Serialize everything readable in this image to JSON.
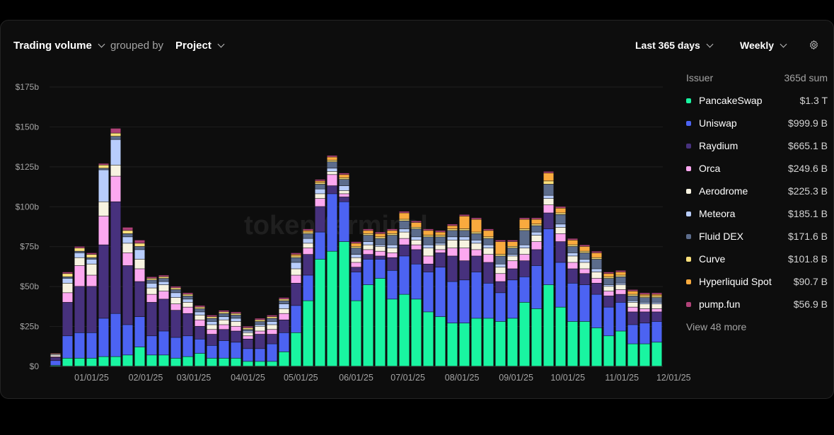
{
  "header": {
    "metric_label": "Trading volume",
    "grouped_by_label": "grouped by",
    "group_label": "Project",
    "range_label": "Last 365 days",
    "interval_label": "Weekly"
  },
  "watermark": "token terminal",
  "legend": {
    "heading_left": "Issuer",
    "heading_right": "365d sum",
    "items": [
      {
        "name": "PancakeSwap",
        "value": "$1.3 T",
        "color": "#19f5a1"
      },
      {
        "name": "Uniswap",
        "value": "$999.9 B",
        "color": "#4c63f2"
      },
      {
        "name": "Raydium",
        "value": "$665.1 B",
        "color": "#47317d"
      },
      {
        "name": "Orca",
        "value": "$249.6 B",
        "color": "#fca8f0"
      },
      {
        "name": "Aerodrome",
        "value": "$225.3 B",
        "color": "#f7f3e1"
      },
      {
        "name": "Meteora",
        "value": "$185.1 B",
        "color": "#b8cdfc"
      },
      {
        "name": "Fluid DEX",
        "value": "$171.6 B",
        "color": "#5c6c8c"
      },
      {
        "name": "Curve",
        "value": "$101.8 B",
        "color": "#fbe07b"
      },
      {
        "name": "Hyperliquid Spot",
        "value": "$90.7 B",
        "color": "#f9aa3e"
      },
      {
        "name": "pump.fun",
        "value": "$56.9 B",
        "color": "#b04278"
      }
    ],
    "more_label": "View 48 more"
  },
  "chart_data": {
    "type": "bar",
    "stacked": true,
    "title": "Trading volume grouped by Project",
    "ylabel": "",
    "xlabel": "",
    "ylim": [
      0,
      175
    ],
    "y_ticks": [
      0,
      25,
      50,
      75,
      100,
      125,
      150,
      175
    ],
    "y_tick_labels": [
      "$0",
      "$25b",
      "$50b",
      "$75b",
      "$100b",
      "$125b",
      "$150b",
      "$175b"
    ],
    "x_ticks": [
      {
        "label": "01/01/25",
        "index": 3
      },
      {
        "label": "02/01/25",
        "index": 7.5
      },
      {
        "label": "03/01/25",
        "index": 11.5
      },
      {
        "label": "04/01/25",
        "index": 16
      },
      {
        "label": "05/01/25",
        "index": 20.4
      },
      {
        "label": "06/01/25",
        "index": 25
      },
      {
        "label": "07/01/25",
        "index": 29.3
      },
      {
        "label": "08/01/25",
        "index": 33.8
      },
      {
        "label": "09/01/25",
        "index": 38.3
      },
      {
        "label": "10/01/25",
        "index": 42.6
      },
      {
        "label": "11/01/25",
        "index": 47.1
      },
      {
        "label": "12/01/25",
        "index": 51.4
      }
    ],
    "series": [
      {
        "name": "PancakeSwap",
        "color": "#19f5a1",
        "values": [
          0.5,
          5,
          5,
          5,
          6,
          6,
          7,
          12,
          7,
          7,
          5,
          6,
          8,
          5,
          5,
          5,
          3,
          3,
          3,
          9,
          21,
          41,
          67,
          72,
          78,
          41,
          51,
          55,
          42,
          45,
          42,
          34,
          31,
          27,
          27,
          30,
          30,
          28,
          30,
          40,
          36,
          51,
          37,
          28,
          28,
          24,
          19,
          22,
          14,
          14,
          15
        ]
      },
      {
        "name": "Uniswap",
        "color": "#4c63f2",
        "values": [
          3,
          14,
          16,
          16,
          24,
          27,
          19,
          19,
          12,
          15,
          13,
          13,
          9,
          8,
          11,
          10,
          8,
          8,
          11,
          12,
          17,
          16,
          17,
          36,
          25,
          18,
          16,
          12,
          18,
          24,
          22,
          25,
          31,
          26,
          27,
          29,
          22,
          18,
          24,
          16,
          27,
          35,
          28,
          24,
          23,
          21,
          18,
          18,
          12,
          13,
          13
        ]
      },
      {
        "name": "Raydium",
        "color": "#47317d",
        "values": [
          2,
          21,
          29,
          29,
          46,
          70,
          37,
          22,
          21,
          20,
          17,
          14,
          8,
          7,
          7,
          7,
          6,
          9,
          6,
          8,
          14,
          13,
          16,
          5,
          3,
          3,
          3,
          2,
          8,
          7,
          9,
          5,
          9,
          16,
          12,
          10,
          13,
          7,
          7,
          10,
          10,
          10,
          13,
          9,
          7,
          7,
          7,
          5,
          8,
          7,
          6
        ]
      },
      {
        "name": "Orca",
        "color": "#fca8f0",
        "values": [
          0.5,
          6,
          13,
          7,
          18,
          16,
          8,
          8,
          5,
          5,
          4,
          4,
          4,
          3,
          3,
          3,
          2,
          2,
          3,
          4,
          5,
          4,
          5,
          7,
          2,
          3,
          3,
          3,
          3,
          4,
          3,
          5,
          2,
          5,
          8,
          4,
          5,
          5,
          5,
          4,
          5,
          5,
          5,
          4,
          3,
          3,
          3,
          3,
          3,
          2,
          2
        ]
      },
      {
        "name": "Aerodrome",
        "color": "#f7f3e1",
        "values": [
          1,
          6,
          5,
          7,
          9,
          7,
          6,
          6,
          4,
          4,
          4,
          3,
          3,
          3,
          3,
          3,
          2,
          3,
          3,
          3,
          4,
          3,
          3,
          2,
          2,
          3,
          3,
          3,
          3,
          4,
          3,
          5,
          3,
          5,
          5,
          4,
          4,
          4,
          3,
          4,
          4,
          4,
          4,
          4,
          4,
          4,
          3,
          3,
          3,
          3,
          3
        ]
      },
      {
        "name": "Meteora",
        "color": "#b8cdfc",
        "values": [
          0.5,
          3,
          3,
          3,
          20,
          16,
          4,
          6,
          3,
          2,
          3,
          2,
          2,
          2,
          2,
          2,
          1,
          1,
          2,
          3,
          4,
          3,
          3,
          2,
          3,
          2,
          2,
          1,
          2,
          2,
          2,
          2,
          1,
          2,
          2,
          2,
          2,
          2,
          1,
          2,
          2,
          2,
          2,
          2,
          2,
          2,
          1,
          1,
          1,
          1,
          1
        ]
      },
      {
        "name": "Fluid DEX",
        "color": "#5c6c8c",
        "values": [
          0,
          1,
          1,
          1,
          1,
          2,
          2,
          2,
          2,
          2,
          2,
          2,
          2,
          2,
          2,
          2,
          1,
          2,
          2,
          2,
          3,
          3,
          3,
          4,
          4,
          4,
          4,
          4,
          6,
          5,
          5,
          5,
          4,
          4,
          4,
          4,
          4,
          5,
          4,
          9,
          4,
          7,
          6,
          4,
          4,
          6,
          4,
          4,
          3,
          3,
          3
        ]
      },
      {
        "name": "Curve",
        "color": "#fbe07b",
        "values": [
          0.3,
          2,
          2,
          2,
          2,
          2,
          2,
          2,
          1,
          1,
          1,
          1,
          1,
          1,
          1,
          1,
          1,
          1,
          1,
          1,
          1,
          1,
          1,
          1,
          1,
          1,
          1,
          1,
          1,
          1,
          1,
          1,
          1,
          1,
          1,
          1,
          1,
          1,
          1,
          1,
          1,
          2,
          1,
          1,
          1,
          1,
          1,
          1,
          1,
          1,
          1
        ]
      },
      {
        "name": "Hyperliquid Spot",
        "color": "#f9aa3e",
        "values": [
          0,
          0,
          0,
          0,
          0,
          0,
          0,
          0,
          0,
          0,
          0,
          0,
          0,
          0,
          0,
          0,
          0,
          0,
          0,
          0,
          1,
          1,
          1,
          2,
          2,
          2,
          2,
          2,
          2,
          4,
          3,
          3,
          2,
          2,
          8,
          8,
          4,
          8,
          3,
          6,
          3,
          5,
          3,
          3,
          3,
          3,
          2,
          2,
          2,
          1,
          1
        ]
      },
      {
        "name": "pump.fun",
        "color": "#b04278",
        "values": [
          0.3,
          1,
          1,
          1,
          1,
          3,
          2,
          2,
          1,
          1,
          1,
          1,
          1,
          1,
          1,
          1,
          1,
          1,
          1,
          1,
          1,
          1,
          1,
          1,
          1,
          1,
          1,
          1,
          1,
          1,
          1,
          1,
          1,
          1,
          1,
          1,
          1,
          1,
          1,
          1,
          1,
          1,
          1,
          1,
          1,
          1,
          1,
          1,
          1,
          1,
          1
        ]
      }
    ]
  }
}
